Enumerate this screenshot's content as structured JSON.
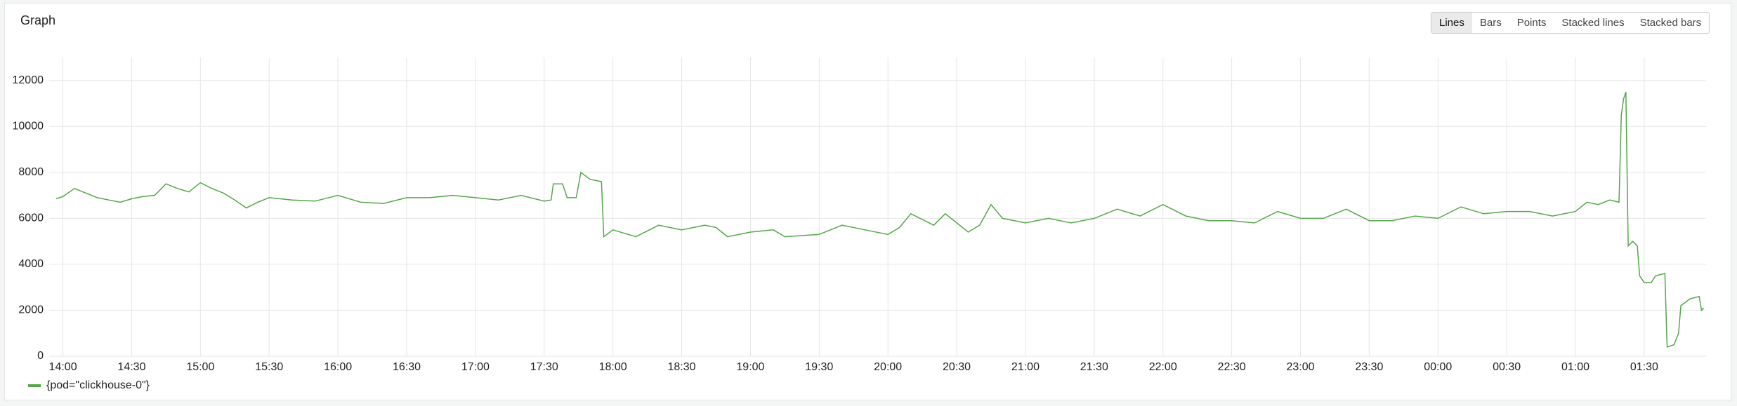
{
  "panel_title": "Graph",
  "view_options": [
    "Lines",
    "Bars",
    "Points",
    "Stacked lines",
    "Stacked bars"
  ],
  "chart_data": {
    "type": "line",
    "x": [
      "13:57",
      "14:00",
      "14:05",
      "14:10",
      "14:15",
      "14:20",
      "14:25",
      "14:30",
      "14:35",
      "14:40",
      "14:45",
      "14:50",
      "14:55",
      "15:00",
      "15:05",
      "15:10",
      "15:15",
      "15:20",
      "15:25",
      "15:30",
      "15:40",
      "15:50",
      "16:00",
      "16:10",
      "16:20",
      "16:30",
      "16:40",
      "16:50",
      "17:00",
      "17:10",
      "17:20",
      "17:30",
      "17:33",
      "17:34",
      "17:38",
      "17:40",
      "17:44",
      "17:46",
      "17:50",
      "17:55",
      "17:56",
      "18:00",
      "18:10",
      "18:20",
      "18:30",
      "18:40",
      "18:45",
      "18:50",
      "19:00",
      "19:10",
      "19:15",
      "19:30",
      "19:40",
      "19:50",
      "20:00",
      "20:05",
      "20:10",
      "20:20",
      "20:25",
      "20:35",
      "20:40",
      "20:45",
      "20:50",
      "21:00",
      "21:10",
      "21:20",
      "21:30",
      "21:40",
      "21:50",
      "22:00",
      "22:10",
      "22:20",
      "22:30",
      "22:40",
      "22:50",
      "23:00",
      "23:10",
      "23:20",
      "23:30",
      "23:40",
      "23:50",
      "00:00",
      "00:10",
      "00:20",
      "00:30",
      "00:40",
      "00:50",
      "01:00",
      "01:05",
      "01:10",
      "01:15",
      "01:19",
      "01:20",
      "01:21",
      "01:22",
      "01:23",
      "01:25",
      "01:27",
      "01:28",
      "01:30",
      "01:33",
      "01:35",
      "01:39",
      "01:40",
      "01:43",
      "01:45",
      "01:46",
      "01:50",
      "01:54",
      "01:55",
      "01:56"
    ],
    "series": [
      {
        "name": "{pod=\"clickhouse-0\"}",
        "color": "#56a64b",
        "values": [
          6850,
          6950,
          7300,
          7100,
          6900,
          6800,
          6700,
          6850,
          6950,
          7000,
          7500,
          7300,
          7150,
          7550,
          7300,
          7100,
          6800,
          6450,
          6700,
          6900,
          6800,
          6750,
          7000,
          6700,
          6650,
          6900,
          6900,
          7000,
          6900,
          6800,
          7000,
          6750,
          6800,
          7500,
          7500,
          6900,
          6900,
          8000,
          7700,
          7600,
          5200,
          5500,
          5200,
          5700,
          5500,
          5700,
          5600,
          5200,
          5400,
          5500,
          5200,
          5300,
          5700,
          5500,
          5300,
          5600,
          6200,
          5700,
          6200,
          5400,
          5700,
          6600,
          6000,
          5800,
          6000,
          5800,
          6000,
          6400,
          6100,
          6600,
          6100,
          5900,
          5900,
          5800,
          6300,
          6000,
          6000,
          6400,
          5900,
          5900,
          6100,
          6000,
          6500,
          6200,
          6300,
          6300,
          6100,
          6300,
          6700,
          6600,
          6800,
          6700,
          10500,
          11200,
          11500,
          4800,
          5000,
          4800,
          3500,
          3200,
          3200,
          3500,
          3600,
          400,
          500,
          1000,
          2200,
          2500,
          2600,
          2000,
          2100
        ]
      }
    ],
    "xlim": [
      "13:54",
      "01:57"
    ],
    "xticks": [
      "14:00",
      "14:30",
      "15:00",
      "15:30",
      "16:00",
      "16:30",
      "17:00",
      "17:30",
      "18:00",
      "18:30",
      "19:00",
      "19:30",
      "20:00",
      "20:30",
      "21:00",
      "21:30",
      "22:00",
      "22:30",
      "23:00",
      "23:30",
      "00:00",
      "00:30",
      "01:00",
      "01:30"
    ],
    "ylim": [
      0,
      13000
    ],
    "yticks": [
      0,
      2000,
      4000,
      6000,
      8000,
      10000,
      12000
    ],
    "grid": true,
    "legend": "bottom"
  }
}
